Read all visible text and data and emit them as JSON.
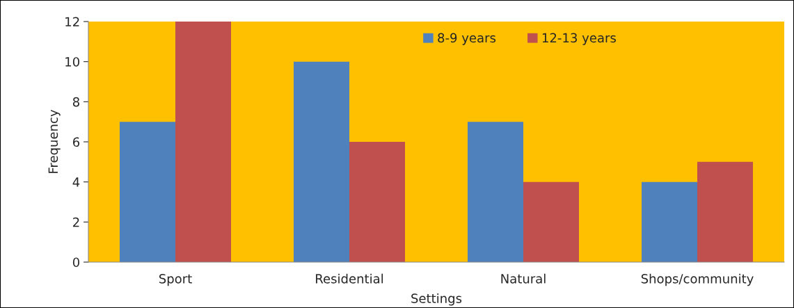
{
  "chart_data": {
    "type": "bar",
    "xlabel": "Settings",
    "ylabel": "Frequency",
    "categories": [
      "Sport",
      "Residential",
      "Natural",
      "Shops/community"
    ],
    "series": [
      {
        "name": "8-9 years",
        "color": "#4f81bd",
        "values": [
          7,
          10,
          7,
          4
        ]
      },
      {
        "name": "12-13 years",
        "color": "#c0504d",
        "values": [
          12,
          6,
          4,
          5
        ]
      }
    ],
    "ylim": [
      0,
      12
    ],
    "yticks": [
      0,
      2,
      4,
      6,
      8,
      10,
      12
    ],
    "grid": false,
    "legend": "top"
  }
}
